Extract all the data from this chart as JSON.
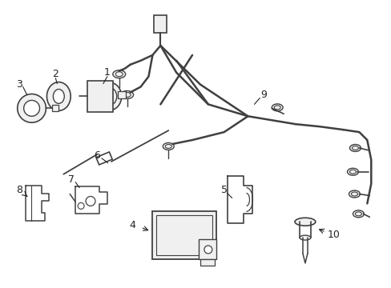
{
  "background_color": "#ffffff",
  "line_color": "#404040",
  "line_width": 1.2,
  "label_fontsize": 9,
  "figsize": [
    4.89,
    3.6
  ],
  "dpi": 100,
  "xlim": [
    0,
    489
  ],
  "ylim": [
    0,
    360
  ]
}
